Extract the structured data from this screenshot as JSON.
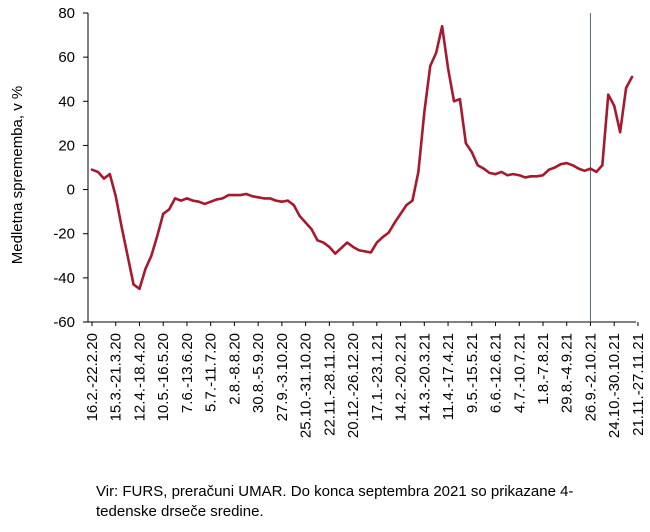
{
  "chart_data": {
    "type": "line",
    "ylabel": "Medletna sprememba, v %",
    "ylim": [
      -60,
      80
    ],
    "yticks": [
      80,
      60,
      40,
      20,
      0,
      -20,
      -40,
      -60
    ],
    "grid": false,
    "series_color": "#A6192E",
    "x_tick_labels": [
      "16.2.-22.2.20",
      "15.3.-21.3.20",
      "12.4.-18.4.20",
      "10.5.-16.5.20",
      "7.6.-13.6.20",
      "5.7.-11.7.20",
      "2.8.-8.8.20",
      "30.8.-5.9.20",
      "27.9.-3.10.20",
      "25.10.-31.10.20",
      "22.11.-28.11.20",
      "20.12.-26.12.20",
      "17.1.-23.1.21",
      "14.2.-20.2.21",
      "14.3.-20.3.21",
      "11.4.-17.4.21",
      "9.5.-15.5.21",
      "6.6.-12.6.21",
      "4.7.-10.7.21",
      "1.8.-7.8.21",
      "29.8.-4.9.21",
      "26.9.-2.10.21",
      "24.10.-30.10.21",
      "21.11.-27.11.21"
    ],
    "vertical_marker_after": "26.9.-2.10.21",
    "series": [
      {
        "values": [
          9,
          8,
          5,
          7,
          -3,
          -17,
          -30,
          -43,
          -45,
          -36,
          -30,
          -21,
          -11,
          -9,
          -4,
          -5,
          -4,
          -5,
          -5.5,
          -6.5,
          -5.5,
          -4.5,
          -4,
          -2.5,
          -2.5,
          -2.5,
          -2,
          -3,
          -3.5,
          -4,
          -4,
          -5,
          -5.5,
          -5,
          -7,
          -12,
          -15,
          -18,
          -23,
          -24,
          -26,
          -29,
          -26.5,
          -24,
          -26,
          -27.5,
          -28,
          -28.5,
          -24,
          -21.5,
          -19.5,
          -15,
          -11,
          -7,
          -5,
          8,
          35,
          56,
          62,
          74,
          55,
          40,
          41,
          21,
          17,
          11,
          9.5,
          7.5,
          7,
          8,
          6.5,
          7,
          6.5,
          5.5,
          6,
          6,
          6.5,
          9,
          10,
          11.5,
          12,
          11,
          9.5,
          8.5,
          9.5,
          8,
          11,
          43,
          38,
          26,
          46,
          51
        ]
      }
    ]
  },
  "source_note": "Vir: FURS, preračuni UMAR. Do konca septembra 2021 so prikazane 4-tedenske drseče sredine."
}
